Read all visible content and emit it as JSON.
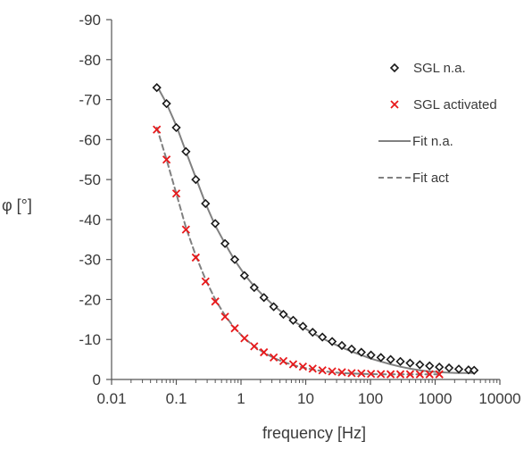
{
  "chart_data": {
    "type": "scatter",
    "title": "",
    "xlabel": "frequency [Hz]",
    "ylabel": "φ [°]",
    "x_scale": "log",
    "xlim": [
      0.01,
      10000
    ],
    "ylim": [
      0,
      -90
    ],
    "y_reversed": true,
    "x_ticks": [
      0.01,
      0.1,
      1,
      10,
      100,
      1000,
      10000
    ],
    "x_tick_labels": [
      "0.01",
      "0.1",
      "1",
      "10",
      "100",
      "1000",
      "10000"
    ],
    "y_ticks": [
      0,
      -10,
      -20,
      -30,
      -40,
      -50,
      -60,
      -70,
      -80,
      -90
    ],
    "y_tick_labels": [
      "0",
      "-10",
      "-20",
      "-30",
      "-40",
      "-50",
      "-60",
      "-70",
      "-80",
      "-90"
    ],
    "grid": false,
    "legend_position": "right",
    "colors": {
      "axis": "#555555",
      "text": "#3a3a3a"
    },
    "series": [
      {
        "name": "SGL n.a.",
        "kind": "marker",
        "marker": "diamond",
        "color": "#1a1a1a",
        "x": [
          0.05,
          0.0707,
          0.1,
          0.141,
          0.2,
          0.283,
          0.4,
          0.566,
          0.8,
          1.13,
          1.6,
          2.26,
          3.2,
          4.52,
          6.4,
          9.05,
          12.8,
          18.1,
          25.6,
          36.2,
          51.2,
          72.4,
          102,
          145,
          205,
          290,
          410,
          580,
          820,
          1160,
          1640,
          2320,
          3280,
          4000
        ],
        "y": [
          -73,
          -69,
          -63,
          -57,
          -50,
          -44,
          -39,
          -34,
          -30,
          -26,
          -23,
          -20.5,
          -18.2,
          -16.3,
          -14.8,
          -13.3,
          -11.8,
          -10.6,
          -9.5,
          -8.5,
          -7.6,
          -6.8,
          -6.1,
          -5.5,
          -5.0,
          -4.5,
          -4.1,
          -3.7,
          -3.4,
          -3.1,
          -2.9,
          -2.6,
          -2.4,
          -2.3
        ]
      },
      {
        "name": "SGL activated",
        "kind": "marker",
        "marker": "x",
        "color": "#e8191b",
        "x": [
          0.05,
          0.0707,
          0.1,
          0.141,
          0.2,
          0.283,
          0.4,
          0.566,
          0.8,
          1.13,
          1.6,
          2.26,
          3.2,
          4.52,
          6.4,
          9.05,
          12.8,
          18.1,
          25.6,
          36.2,
          51.2,
          72.4,
          102,
          145,
          205,
          290,
          410,
          580,
          820,
          1160
        ],
        "y": [
          -62.5,
          -55,
          -46.5,
          -37.5,
          -30.5,
          -24.5,
          -19.5,
          -15.7,
          -12.8,
          -10.3,
          -8.3,
          -6.8,
          -5.5,
          -4.6,
          -3.8,
          -3.2,
          -2.7,
          -2.3,
          -2.0,
          -1.8,
          -1.6,
          -1.5,
          -1.4,
          -1.35,
          -1.3,
          -1.3,
          -1.3,
          -1.3,
          -1.3,
          -1.3
        ]
      },
      {
        "name": "Fit n.a.",
        "kind": "line",
        "dash": "solid",
        "color": "#808080",
        "x": [
          0.05,
          0.0707,
          0.1,
          0.141,
          0.2,
          0.283,
          0.4,
          0.566,
          0.8,
          1.13,
          1.6,
          2.26,
          3.2,
          4.52,
          6.4,
          9.05,
          12.8,
          18.1,
          25.6,
          36.2,
          51.2,
          72.4,
          102,
          145,
          205,
          290,
          410,
          580,
          820,
          1160,
          1640,
          2320,
          3280,
          4000
        ],
        "y": [
          -73.5,
          -69,
          -63.5,
          -57,
          -50.5,
          -44,
          -38.5,
          -34,
          -29.8,
          -26.3,
          -23.3,
          -20.8,
          -18.5,
          -16.5,
          -14.7,
          -13.1,
          -11.6,
          -10.3,
          -9.1,
          -8.0,
          -7.0,
          -6.1,
          -5.2,
          -4.5,
          -3.8,
          -3.2,
          -2.7,
          -2.3,
          -2.0,
          -1.8,
          -1.7,
          -1.6,
          -1.6,
          -1.6
        ]
      },
      {
        "name": "Fit act",
        "kind": "line",
        "dash": "dashed",
        "color": "#808080",
        "x": [
          0.05,
          0.0707,
          0.1,
          0.141,
          0.2,
          0.283,
          0.4,
          0.566,
          0.8,
          1.13,
          1.6,
          2.26,
          3.2,
          4.52,
          6.4,
          9.05,
          12.8,
          18.1,
          25.6,
          36.2,
          51.2,
          72.4,
          102,
          145,
          205,
          290,
          410,
          580,
          820,
          1160
        ],
        "y": [
          -63,
          -55,
          -46.5,
          -38,
          -31,
          -25,
          -20,
          -16,
          -12.8,
          -10.3,
          -8.3,
          -6.7,
          -5.4,
          -4.4,
          -3.6,
          -3.0,
          -2.5,
          -2.1,
          -1.8,
          -1.6,
          -1.5,
          -1.4,
          -1.35,
          -1.3,
          -1.3,
          -1.3,
          -1.3,
          -1.3,
          -1.3,
          -1.3
        ]
      }
    ]
  }
}
